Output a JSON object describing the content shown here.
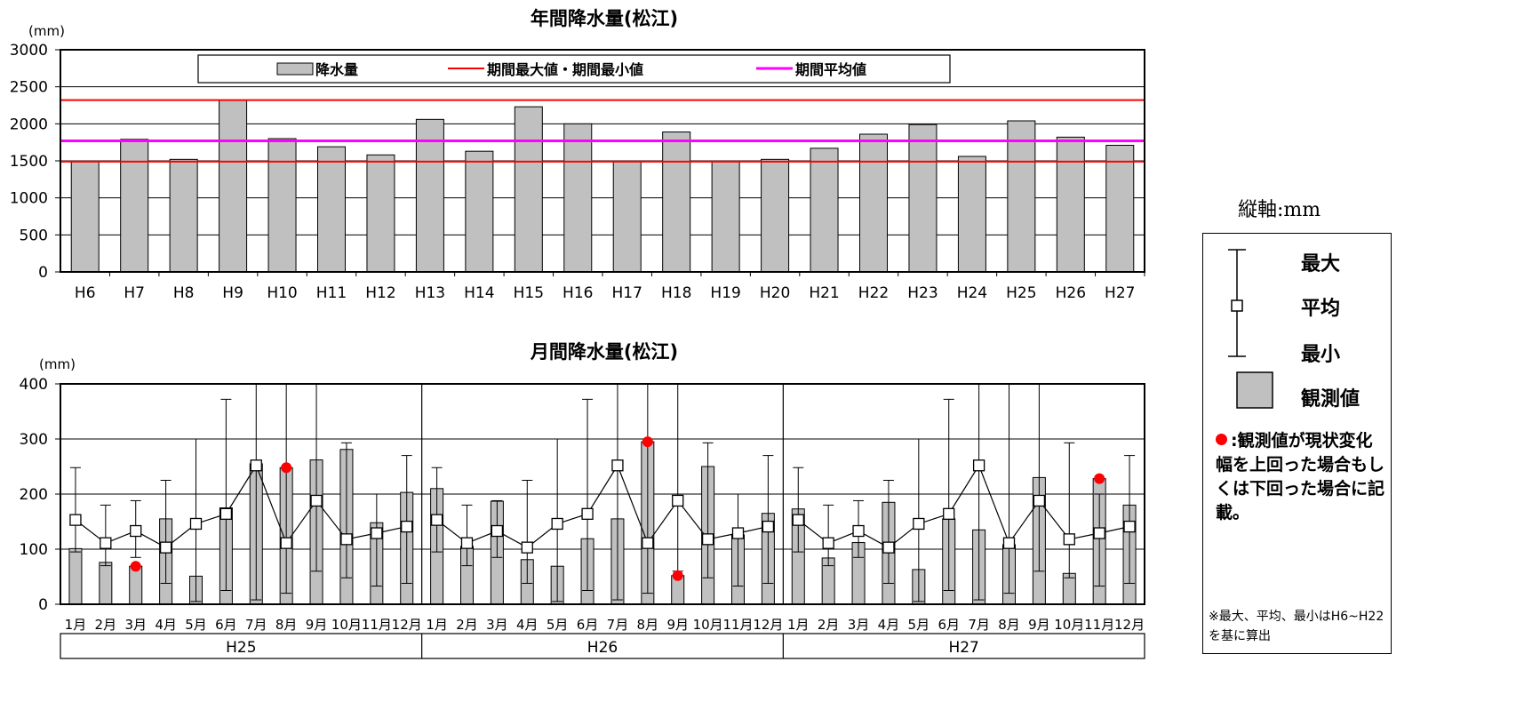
{
  "chart_data": [
    {
      "type": "bar",
      "title": "年間降水量(松江)",
      "unit": "(mm)",
      "categories": [
        "H6",
        "H7",
        "H8",
        "H9",
        "H10",
        "H11",
        "H12",
        "H13",
        "H14",
        "H15",
        "H16",
        "H17",
        "H18",
        "H19",
        "H20",
        "H21",
        "H22",
        "H23",
        "H24",
        "H25",
        "H26",
        "H27"
      ],
      "values": [
        1490,
        1790,
        1520,
        2320,
        1800,
        1690,
        1580,
        2060,
        1630,
        2230,
        2000,
        1490,
        1890,
        1500,
        1520,
        1670,
        1860,
        1990,
        1560,
        2040,
        1820,
        1710
      ],
      "y_ticks": [
        "0",
        "500",
        "1000",
        "1500",
        "2000",
        "2500",
        "3000"
      ],
      "ylim": [
        0,
        3000
      ],
      "reference_lines": {
        "max": 2320,
        "min": 1490,
        "mean": 1770
      },
      "legend": {
        "bar": "降水量",
        "maxmin": "期間最大値・期間最小値",
        "mean": "期間平均値",
        "placement": "top"
      },
      "colors": {
        "bar": "#c0c0c0",
        "maxmin": "#ff0000",
        "mean": "#ff00ff"
      }
    },
    {
      "type": "bar",
      "title": "月間降水量(松江)",
      "unit": "(mm)",
      "month_labels": [
        "1月",
        "2月",
        "3月",
        "4月",
        "5月",
        "6月",
        "7月",
        "8月",
        "9月",
        "10月",
        "11月",
        "12月"
      ],
      "groups": [
        "H25",
        "H26",
        "H27"
      ],
      "y_ticks": [
        "0",
        "100",
        "200",
        "300",
        "400"
      ],
      "ylim": [
        0,
        400
      ],
      "monthly_stats": {
        "max": [
          248,
          180,
          188,
          225,
          300,
          372,
          500,
          500,
          500,
          293,
          200,
          270
        ],
        "mean": [
          153,
          111,
          133,
          103,
          146,
          164,
          252,
          111,
          188,
          118,
          129,
          141
        ],
        "min": [
          95,
          70,
          85,
          38,
          5,
          25,
          8,
          20,
          60,
          48,
          33,
          38
        ]
      },
      "series": [
        {
          "name": "H25",
          "values": [
            101,
            76,
            69,
            155,
            51,
            175,
            255,
            248,
            262,
            281,
            148,
            203
          ]
        },
        {
          "name": "H26",
          "values": [
            210,
            105,
            187,
            81,
            69,
            119,
            155,
            295,
            52,
            250,
            126,
            165
          ]
        },
        {
          "name": "H27",
          "values": [
            173,
            84,
            112,
            185,
            63,
            155,
            135,
            108,
            230,
            56,
            228,
            180
          ]
        }
      ],
      "highlight_points": [
        {
          "group": "H25",
          "month": "3月",
          "value": 69
        },
        {
          "group": "H25",
          "month": "8月",
          "value": 248
        },
        {
          "group": "H26",
          "month": "8月",
          "value": 295
        },
        {
          "group": "H26",
          "month": "9月",
          "value": 52
        },
        {
          "group": "H27",
          "month": "11月",
          "value": 228
        }
      ],
      "colors": {
        "bar": "#c0c0c0",
        "highlight": "#ff0000"
      }
    }
  ],
  "legend_panel": {
    "axis_unit": "縦軸:mm",
    "max_label": "最大",
    "mean_label": "平均",
    "min_label": "最小",
    "observed_label": "観測値",
    "dot_note": ":観測値が現状変化幅を上回った場合もしくは下回った場合に記載。",
    "footnote": "※最大、平均、最小はH6~H22を基に算出"
  }
}
